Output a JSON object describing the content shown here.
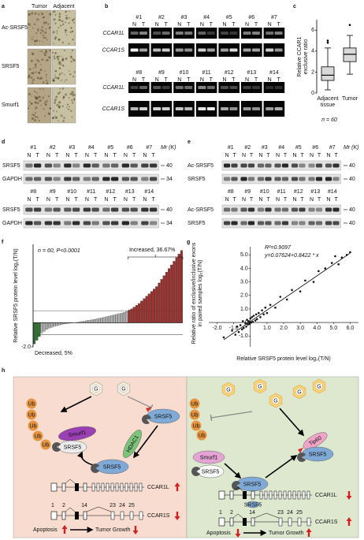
{
  "panel_labels": [
    "a",
    "b",
    "c",
    "d",
    "e",
    "f",
    "g",
    "h"
  ],
  "panel_a": {
    "columns": [
      "Tumor",
      "Adjacent"
    ],
    "rows": [
      "Ac-SRSF5",
      "SRSF5",
      "Smurf1"
    ]
  },
  "panel_b": {
    "lane_sub": [
      "N",
      "T"
    ],
    "blocks": [
      {
        "lanes": [
          "#1",
          "#2",
          "#3",
          "#4",
          "#5",
          "#6",
          "#7"
        ],
        "rows": [
          "CCAR1L",
          "CCAR1S"
        ]
      },
      {
        "lanes": [
          "#8",
          "#9",
          "#10",
          "#11",
          "#12",
          "#13",
          "#14"
        ],
        "rows": [
          "CCAR1L",
          "CCAR1S"
        ]
      }
    ]
  },
  "panel_d": {
    "lane_sub": [
      "N",
      "T"
    ],
    "unit": "Mr (K)",
    "blocks": [
      {
        "lanes": [
          "#1",
          "#2",
          "#3",
          "#4",
          "#5",
          "#6",
          "#7"
        ],
        "rows": [
          "SRSF5",
          "GAPDH"
        ],
        "markers": [
          "40",
          "34"
        ]
      },
      {
        "lanes": [
          "#8",
          "#9",
          "#10",
          "#11",
          "#12",
          "#13",
          "#14"
        ],
        "rows": [
          "SRSF5",
          "GAPDH"
        ],
        "markers": [
          "40",
          "34"
        ]
      }
    ]
  },
  "panel_e": {
    "lane_sub": [
      "N",
      "T"
    ],
    "unit": "Mr (K)",
    "blocks": [
      {
        "lanes": [
          "#1",
          "#2",
          "#3",
          "#4",
          "#5",
          "#6",
          "#7"
        ],
        "rows": [
          "Ac-SRSF5",
          "SRSF5"
        ],
        "markers": [
          "40",
          "40"
        ]
      },
      {
        "lanes": [
          "#8",
          "#9",
          "#10",
          "#11",
          "#12",
          "#13",
          "#14"
        ],
        "rows": [
          "Ac-SRSF5",
          "SRSF5"
        ],
        "markers": [
          "40",
          "40"
        ]
      }
    ]
  },
  "chart_data": [
    {
      "type": "box",
      "ylabel": [
        "Relative CCAR1",
        "exclusive ratio"
      ],
      "categories": [
        "Adjacent tissue",
        "Tumor"
      ],
      "annotation": "n = 60",
      "ylim": [
        0,
        7
      ],
      "yticks": [
        0,
        2,
        4,
        6
      ],
      "color": "#d9d9d9",
      "stats": [
        {
          "whislo": 0.3,
          "q1": 1.2,
          "med": 1.7,
          "q3": 2.5,
          "whishi": 4.3,
          "fliers": [
            4.8,
            5.0
          ]
        },
        {
          "whislo": 1.8,
          "q1": 3.0,
          "med": 3.7,
          "q3": 4.3,
          "whishi": 5.5,
          "fliers": [
            6.5
          ]
        }
      ]
    },
    {
      "type": "bar",
      "ylabel": "Relative SRSF5 protein level log₂(T/N)",
      "annotation": "n = 60, P<0.0001",
      "increased_label": "Increased, 36.67%",
      "decreased_label": "Decreased, 5%",
      "values": [
        -1.75,
        -1.45,
        -1.15,
        -0.85,
        -0.7,
        -0.55,
        -0.45,
        -0.38,
        -0.3,
        -0.25,
        -0.2,
        -0.15,
        -0.1,
        -0.07,
        -0.04,
        -0.02,
        0.0,
        0.03,
        0.06,
        0.1,
        0.13,
        0.17,
        0.2,
        0.24,
        0.28,
        0.32,
        0.36,
        0.4,
        0.45,
        0.5,
        0.55,
        0.6,
        0.65,
        0.7,
        0.75,
        0.8,
        0.86,
        0.93,
        1.05,
        1.15,
        1.3,
        1.45,
        1.6,
        1.8,
        2.0,
        2.2,
        2.4,
        2.6,
        2.8,
        3.0,
        3.3,
        3.6,
        3.9,
        4.2,
        4.5,
        4.8,
        5.1,
        5.4,
        5.7,
        6.0
      ],
      "colors": [
        "#2f6f2f",
        "#b0b0b0",
        "#9b2d2a"
      ],
      "reference_lines": [
        -1,
        1
      ],
      "ylim": [
        -2,
        6.5
      ],
      "yticks": [
        {
          "value": -2,
          "label": "-2.0"
        }
      ]
    },
    {
      "type": "scatter",
      "r2": "R²=0.9097",
      "equation": "y=0.07624+0.8422 * x",
      "fit": {
        "intercept": 0.07624,
        "slope": 0.8422
      },
      "xlabel": "Relative SRSF5 protein level log₂(T/N)",
      "ylabel": [
        "Relative ratio of exclusive/inclusive exons",
        "in paired samples log₂(T/N)"
      ],
      "x": [
        -1.6,
        -1.1,
        -0.9,
        -0.8,
        -0.7,
        -0.6,
        -0.5,
        -0.45,
        -0.4,
        -0.3,
        -0.25,
        -0.2,
        -0.15,
        -0.1,
        -0.05,
        0,
        0.05,
        0.1,
        0.15,
        0.2,
        0.3,
        0.35,
        0.4,
        0.5,
        0.6,
        0.7,
        0.8,
        0.9,
        1.0,
        1.2,
        1.5,
        1.8,
        2.2,
        2.5,
        3.0,
        3.3,
        3.8,
        4.1,
        4.5,
        4.9,
        5.1,
        5.3,
        5.5,
        5.8,
        6.0
      ],
      "y": [
        -1.1,
        -0.6,
        -0.9,
        -0.3,
        -0.7,
        -0.2,
        -0.5,
        0.1,
        -0.4,
        -0.05,
        -0.3,
        0.2,
        -0.15,
        0.1,
        -0.1,
        0.3,
        0.0,
        0.4,
        0.05,
        0.5,
        0.15,
        0.6,
        0.25,
        0.7,
        0.4,
        0.9,
        0.6,
        1.1,
        0.7,
        1.3,
        1.1,
        1.9,
        1.7,
        2.4,
        2.3,
        3.1,
        3.0,
        3.8,
        4.0,
        4.4,
        4.9,
        4.3,
        4.8,
        5.0,
        5.2
      ],
      "xlim": [
        -2.5,
        6.5
      ],
      "ylim": [
        -1.8,
        5.6
      ],
      "xticks": [
        {
          "value": -2,
          "label": "-2.0"
        },
        {
          "value": -1,
          "label": "-1.0"
        },
        {
          "value": 1,
          "label": "1.0"
        },
        {
          "value": 2,
          "label": "2.0"
        },
        {
          "value": 3,
          "label": "3.0"
        },
        {
          "value": 4,
          "label": "4.0"
        },
        {
          "value": 5,
          "label": "5.0"
        },
        {
          "value": 6,
          "label": "6.0"
        }
      ],
      "yticks": [
        {
          "value": -1,
          "label": "-1.0"
        },
        0,
        {
          "value": 1,
          "label": "1.0"
        },
        {
          "value": 2,
          "label": "2.0"
        },
        {
          "value": 3,
          "label": "3.0"
        },
        {
          "value": 4,
          "label": "4.0"
        },
        {
          "value": 5,
          "label": "5.0"
        }
      ]
    }
  ],
  "panel_h": {
    "left": {
      "glucose": "G",
      "ub": "Ub",
      "smurf1": "Smurf1",
      "srsf5": "SRSF5",
      "hdac1": "HDAC1",
      "ccar1l": "CCAR1L",
      "ccar1s": "CCAR1S",
      "exons": [
        "1",
        "2",
        "14",
        "23",
        "24",
        "25"
      ],
      "apoptosis": "Apoptosis",
      "growth": "Tumor Growth"
    },
    "right": {
      "glucose": "G",
      "ub": "Ub",
      "smurf1": "Smurf1",
      "srsf5": "SRSF5",
      "tip60": "Tip60",
      "ccar1l": "CCAR1L",
      "ccar1s": "CCAR1S",
      "exons": [
        "1",
        "2",
        "14",
        "23",
        "24",
        "25"
      ],
      "apoptosis": "Apoptosis",
      "growth": "Tumor Growth"
    }
  }
}
